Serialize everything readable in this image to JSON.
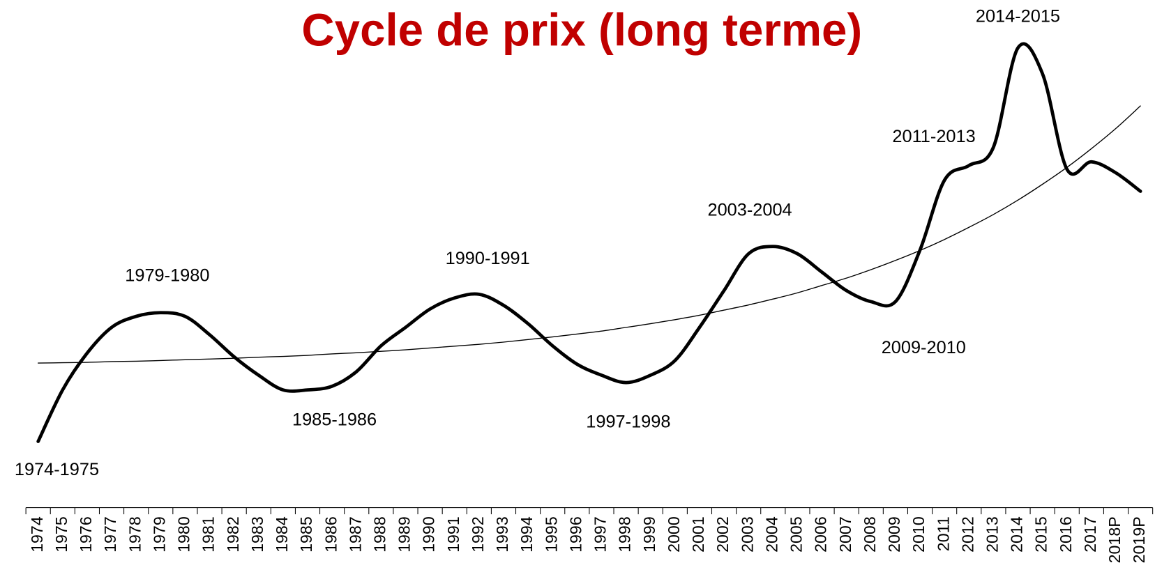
{
  "chart_data": {
    "type": "line",
    "title": "Cycle de prix (long terme)",
    "title_color": "#c00000",
    "categories": [
      "1974",
      "1975",
      "1976",
      "1977",
      "1978",
      "1979",
      "1980",
      "1981",
      "1982",
      "1983",
      "1984",
      "1985",
      "1986",
      "1987",
      "1988",
      "1989",
      "1990",
      "1991",
      "1992",
      "1993",
      "1994",
      "1995",
      "1996",
      "1997",
      "1998",
      "1999",
      "2000",
      "2001",
      "2002",
      "2003",
      "2004",
      "2005",
      "2006",
      "2007",
      "2008",
      "2009",
      "2010",
      "2011",
      "2012",
      "2013",
      "2014",
      "2015",
      "2016",
      "2017",
      "2018P",
      "2019P"
    ],
    "series": [
      {
        "color": "#000000",
        "line_width": 4.5,
        "smooth": true,
        "values": [
          18,
          32,
          42,
          49,
          52,
          53,
          52,
          47,
          41,
          36,
          32,
          32,
          33,
          37,
          44,
          49,
          54,
          57,
          58,
          55,
          50,
          44,
          39,
          36,
          34,
          36,
          40,
          49,
          59,
          69,
          71,
          69,
          64,
          59,
          56,
          56,
          70,
          89,
          93,
          98,
          125,
          118,
          92,
          94,
          91,
          86
        ]
      },
      {
        "color": "#000000",
        "line_width": 1.3,
        "smooth": true,
        "values": [
          39.3,
          39.4,
          39.5,
          39.7,
          39.8,
          40.0,
          40.2,
          40.4,
          40.6,
          40.9,
          41.1,
          41.4,
          41.8,
          42.1,
          42.5,
          42.9,
          43.4,
          43.9,
          44.4,
          45.0,
          45.7,
          46.4,
          47.2,
          48.0,
          49.0,
          50.0,
          51.1,
          52.3,
          53.7,
          55.1,
          56.7,
          58.4,
          60.4,
          62.4,
          64.7,
          67.2,
          69.9,
          72.9,
          76.2,
          79.7,
          83.6,
          87.9,
          92.5,
          97.6,
          103.1,
          109.2
        ]
      }
    ],
    "ylim": [
      0,
      130
    ],
    "annotations": [
      "1974-1975",
      "1979-1980",
      "1985-1986",
      "1990-1991",
      "1997-1998",
      "2003-2004",
      "2009-2010",
      "2011-2013",
      "2014-2015"
    ]
  }
}
